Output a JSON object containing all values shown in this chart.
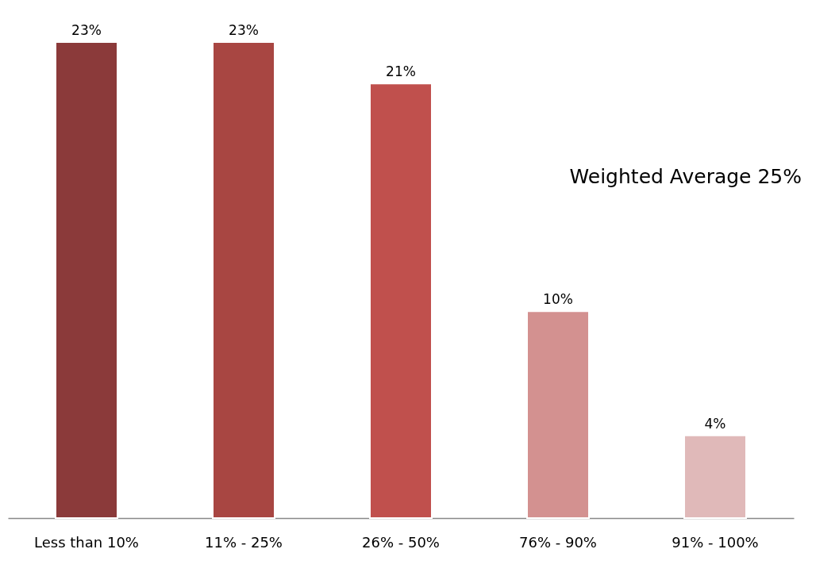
{
  "chart_data": {
    "type": "bar",
    "categories": [
      "Less than 10%",
      "11% - 25%",
      "26% - 50%",
      "76% - 90%",
      "91% - 100%"
    ],
    "values": [
      23,
      23,
      21,
      10,
      4
    ],
    "value_labels": [
      "23%",
      "23%",
      "21%",
      "10%",
      "4%"
    ],
    "colors": [
      "#8b3a3a",
      "#a84642",
      "#c0504d",
      "#d39190",
      "#e0b9b9"
    ],
    "ylim": [
      0,
      23
    ],
    "tick_labels": "x",
    "grid": false,
    "annotations": [
      "Weighted Average 25%"
    ]
  }
}
